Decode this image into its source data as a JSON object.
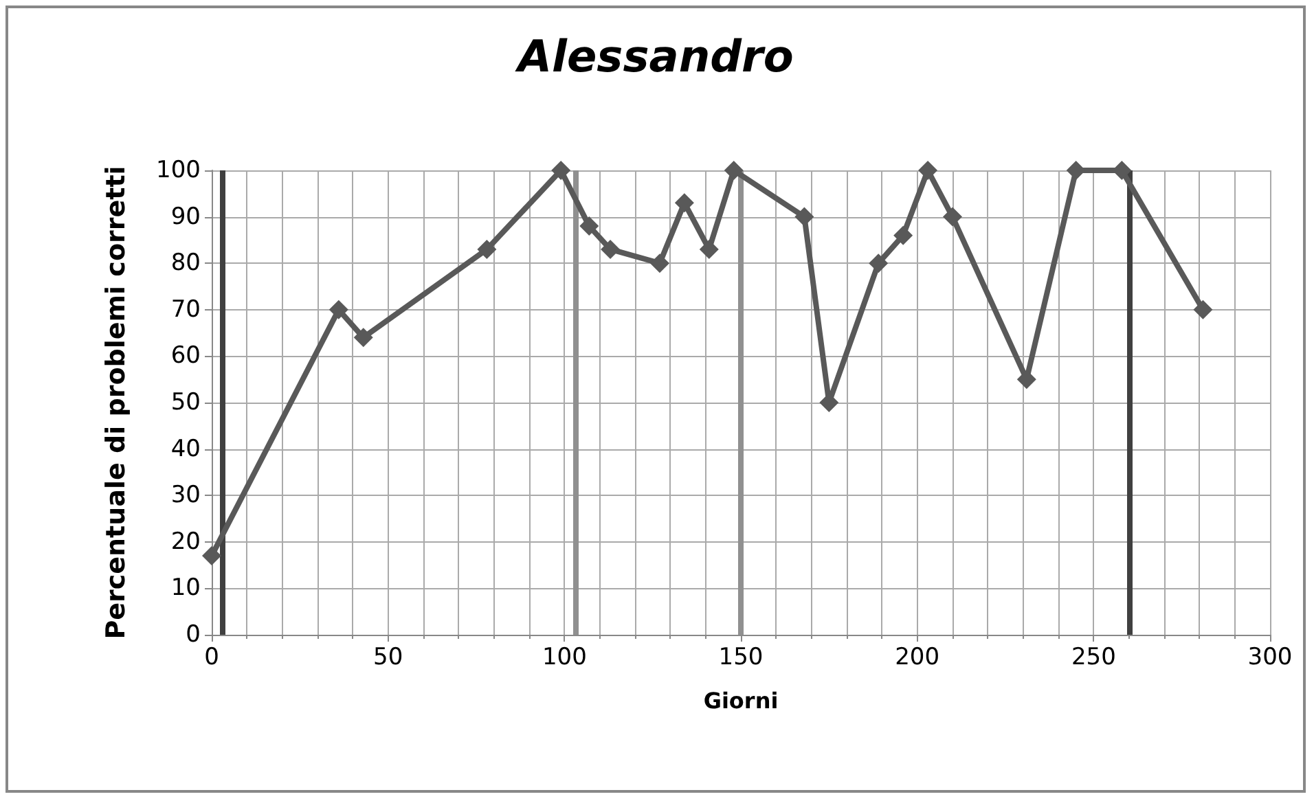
{
  "chart_data": {
    "type": "line",
    "title": "Alessandro",
    "xlabel": "Giorni",
    "ylabel": "Percentuale di problemi corretti",
    "x": [
      0,
      36,
      43,
      78,
      99,
      107,
      113,
      127,
      134,
      141,
      148,
      168,
      175,
      189,
      196,
      203,
      210,
      231,
      245,
      258,
      281
    ],
    "series": [
      {
        "color": "#595959",
        "values": [
          17,
          70,
          64,
          83,
          100,
          88,
          83,
          80,
          93,
          83,
          100,
          90,
          50,
          80,
          86,
          100,
          90,
          55,
          100,
          100,
          70
        ]
      }
    ],
    "xlim": [
      0,
      300
    ],
    "xticks": [
      0,
      50,
      100,
      150,
      200,
      250,
      300
    ],
    "ylim": [
      0,
      100
    ],
    "yticks": [
      0,
      10,
      20,
      30,
      40,
      50,
      60,
      70,
      80,
      90,
      100
    ],
    "grid": true,
    "marker": "diamond",
    "line_style": "solid",
    "ref_lines": [
      {
        "axis": "x",
        "value": 3,
        "color": "#404040"
      },
      {
        "axis": "x",
        "value": 103,
        "color": "#909090"
      },
      {
        "axis": "x",
        "value": 150,
        "color": "#909090"
      },
      {
        "axis": "x",
        "value": 260,
        "color": "#404040"
      }
    ]
  }
}
